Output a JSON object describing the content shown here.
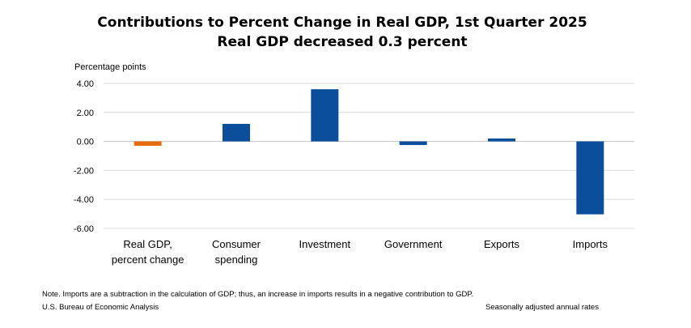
{
  "chart_data": {
    "type": "bar",
    "title": "Contributions to Percent Change in Real GDP, 1st Quarter 2025",
    "subtitle": "Real GDP decreased 0.3 percent",
    "ylabel": "Percentage points",
    "ylim": [
      -6,
      4
    ],
    "yticks": [
      4,
      2,
      0,
      -2,
      -4,
      -6
    ],
    "ytick_labels": [
      "4.00",
      "2.00",
      "0.00",
      "-2.00",
      "-4.00",
      "-6.00"
    ],
    "grid": true,
    "categories": [
      [
        "Real GDP,",
        "percent change"
      ],
      [
        "Consumer",
        "spending"
      ],
      [
        "Investment"
      ],
      [
        "Government"
      ],
      [
        "Exports"
      ],
      [
        "Imports"
      ]
    ],
    "values": [
      -0.3,
      1.21,
      3.6,
      -0.25,
      0.2,
      -5.03
    ],
    "colors": [
      "#e46c0a",
      "#0b4f9c",
      "#0b4f9c",
      "#0b4f9c",
      "#0b4f9c",
      "#0b4f9c"
    ]
  },
  "footer": {
    "note": "Note. Imports are a subtraction in the calculation of GDP; thus, an increase in imports results in a negative contribution to GDP.",
    "source": "U.S. Bureau of Economic Analysis",
    "rates": "Seasonally adjusted annual rates"
  }
}
